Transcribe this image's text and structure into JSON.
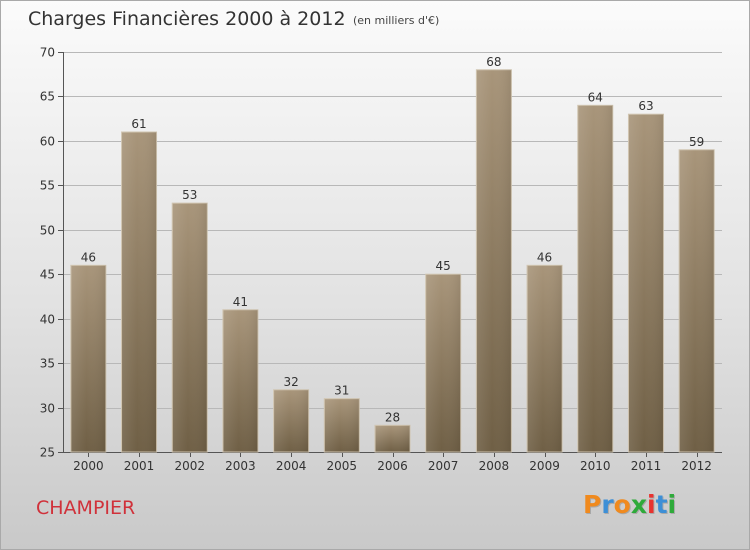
{
  "header": {
    "title": "Charges Financières 2000 à 2012",
    "subtitle": "(en milliers d'€)"
  },
  "commune": "CHAMPIER",
  "logo": {
    "letters": [
      "P",
      "r",
      "o",
      "x",
      "i",
      "t",
      "i"
    ],
    "colors": [
      "#f08a1e",
      "#3d8fd6",
      "#f08a1e",
      "#2eaa3a",
      "#e8322f",
      "#3d8fd6",
      "#2eaa3a"
    ]
  },
  "colors": {
    "bar_light": "#a8957a",
    "bar_dark": "#6f5f45",
    "commune_text": "#d0313a"
  },
  "chart_data": {
    "type": "bar",
    "title": "Charges Financières 2000 à 2012",
    "subtitle": "(en milliers d'€)",
    "categories": [
      "2000",
      "2001",
      "2002",
      "2003",
      "2004",
      "2005",
      "2006",
      "2007",
      "2008",
      "2009",
      "2010",
      "2011",
      "2012"
    ],
    "values": [
      46,
      61,
      53,
      41,
      32,
      31,
      28,
      45,
      68,
      46,
      64,
      63,
      59
    ],
    "ylim": [
      25,
      70
    ],
    "yticks": [
      25,
      30,
      35,
      40,
      45,
      50,
      55,
      60,
      65,
      70
    ],
    "grid": true,
    "data_labels": true
  }
}
